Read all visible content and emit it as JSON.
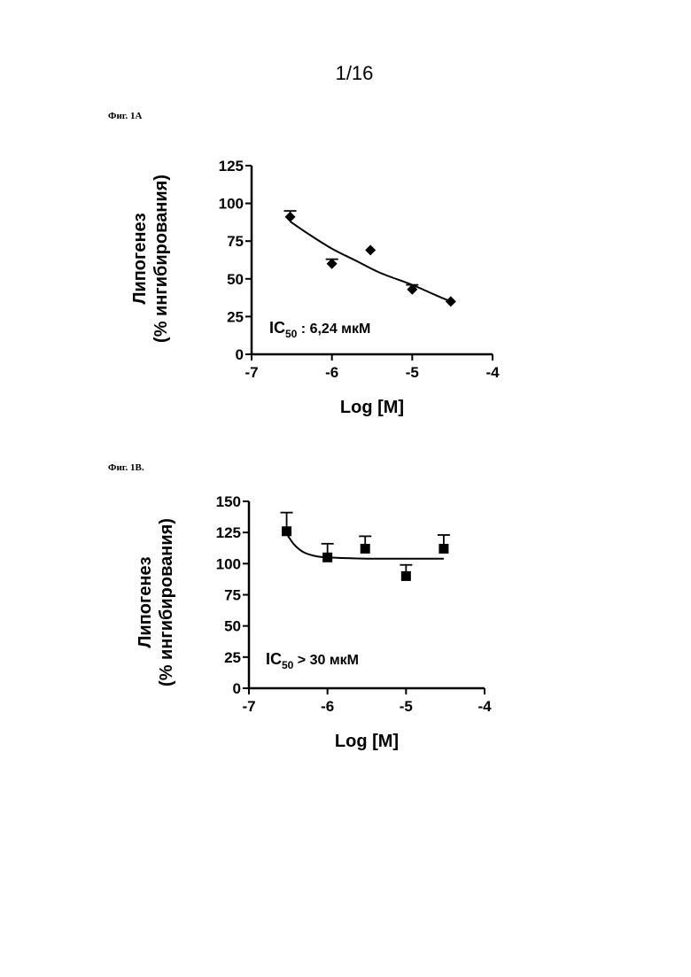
{
  "page_number": "1/16",
  "figures": [
    {
      "label": "Фиг. 1А"
    },
    {
      "label": "Фиг. 1В."
    }
  ],
  "chart_data": [
    {
      "type": "scatter",
      "title": "",
      "xlabel": "Log [M]",
      "ylabel_line1": "Липогенез",
      "ylabel_line2": "(% ингибирования)",
      "xlim": [
        -7,
        -4
      ],
      "ylim": [
        0,
        125
      ],
      "xticks": [
        -7,
        -6,
        -5,
        -4
      ],
      "yticks": [
        0,
        25,
        50,
        75,
        100,
        125
      ],
      "xtick_labels": [
        "-7",
        "-6",
        "-5",
        "-4"
      ],
      "ytick_labels": [
        "0",
        "25",
        "50",
        "75",
        "100",
        "125"
      ],
      "marker": "diamond",
      "x": [
        -6.52,
        -6.0,
        -5.52,
        -5.0,
        -4.52
      ],
      "y": [
        91,
        60,
        69,
        43,
        35
      ],
      "error_upper": [
        95,
        63,
        null,
        46,
        null
      ],
      "fit_curve": {
        "x": [
          -6.52,
          -6.3,
          -6.0,
          -5.7,
          -5.4,
          -5.0,
          -4.7,
          -4.52
        ],
        "y": [
          88,
          80,
          70,
          62,
          54,
          46,
          39,
          35
        ]
      },
      "annotation": {
        "prefix": "IC",
        "subscript": "50",
        "text": " :   6,24 мкМ"
      },
      "grid": false
    },
    {
      "type": "scatter",
      "title": "",
      "xlabel": "Log [M]",
      "ylabel_line1": "Липогенез",
      "ylabel_line2": "(% ингибирования)",
      "xlim": [
        -7,
        -4
      ],
      "ylim": [
        0,
        150
      ],
      "xticks": [
        -7,
        -6,
        -5,
        -4
      ],
      "yticks": [
        0,
        25,
        50,
        75,
        100,
        125,
        150
      ],
      "xtick_labels": [
        "-7",
        "-6",
        "-5",
        "-4"
      ],
      "ytick_labels": [
        "0",
        "25",
        "50",
        "75",
        "100",
        "125",
        "150"
      ],
      "marker": "square",
      "x": [
        -6.52,
        -6.0,
        -5.52,
        -5.0,
        -4.52
      ],
      "y": [
        126,
        105,
        112,
        90,
        112
      ],
      "error_upper": [
        141,
        116,
        122,
        99,
        123
      ],
      "fit_curve": {
        "x": [
          -6.52,
          -6.42,
          -6.3,
          -6.15,
          -6.0,
          -5.8,
          -5.5,
          -5.0,
          -4.52
        ],
        "y": [
          124,
          115,
          109,
          106,
          105,
          104.5,
          104,
          104,
          104
        ]
      },
      "annotation": {
        "prefix": "IC",
        "subscript": "50",
        "text": " >  30 мкМ"
      },
      "grid": false
    }
  ]
}
